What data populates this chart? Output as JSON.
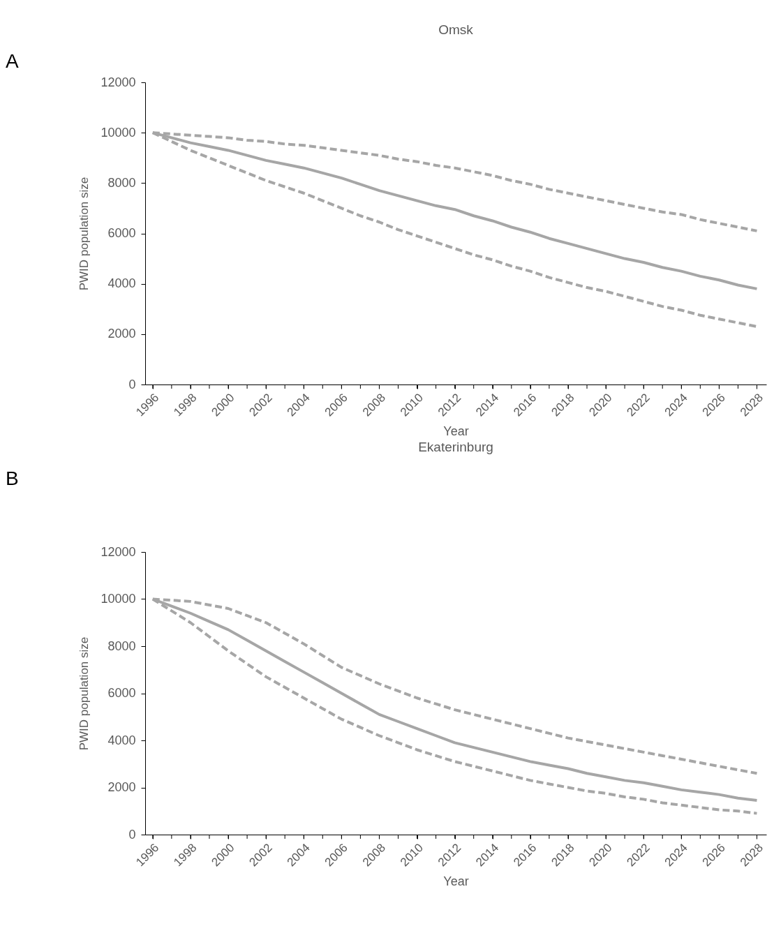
{
  "chart_data": [
    {
      "type": "line",
      "title": "Omsk",
      "xlabel": "Year",
      "ylabel": "PWID population size",
      "annotations": [
        "A"
      ],
      "x": [
        1996,
        1997,
        1998,
        1999,
        2000,
        2001,
        2002,
        2003,
        2004,
        2005,
        2006,
        2007,
        2008,
        2009,
        2010,
        2011,
        2012,
        2013,
        2014,
        2015,
        2016,
        2017,
        2018,
        2019,
        2020,
        2021,
        2022,
        2023,
        2024,
        2025,
        2026,
        2027,
        2028
      ],
      "xlim": [
        1995.6,
        2028.5
      ],
      "xticks": [
        1996,
        {
          "value": 1997,
          "label": null
        },
        1998,
        {
          "value": 1999,
          "label": null
        },
        2000,
        {
          "value": 2001,
          "label": null
        },
        2002,
        {
          "value": 2003,
          "label": null
        },
        2004,
        {
          "value": 2005,
          "label": null
        },
        2006,
        {
          "value": 2007,
          "label": null
        },
        2008,
        {
          "value": 2009,
          "label": null
        },
        2010,
        {
          "value": 2011,
          "label": null
        },
        2012,
        {
          "value": 2013,
          "label": null
        },
        2014,
        {
          "value": 2015,
          "label": null
        },
        2016,
        {
          "value": 2017,
          "label": null
        },
        2018,
        {
          "value": 2019,
          "label": null
        },
        2020,
        {
          "value": 2021,
          "label": null
        },
        2022,
        {
          "value": 2023,
          "label": null
        },
        2024,
        {
          "value": 2025,
          "label": null
        },
        2026,
        {
          "value": 2027,
          "label": null
        },
        2028
      ],
      "ylim": [
        0,
        12000
      ],
      "yticks": [
        0,
        2000,
        4000,
        6000,
        8000,
        10000,
        12000
      ],
      "grid": false,
      "series": [
        {
          "color": "#a6a6a6",
          "line_style": "solid",
          "values": [
            10000,
            9800,
            9600,
            9450,
            9300,
            9100,
            8900,
            8750,
            8600,
            8400,
            8200,
            7950,
            7700,
            7500,
            7300,
            7100,
            6950,
            6700,
            6500,
            6250,
            6050,
            5800,
            5600,
            5400,
            5200,
            5000,
            4850,
            4650,
            4500,
            4300,
            4150,
            3950,
            3800
          ]
        },
        {
          "color": "#a6a6a6",
          "line_style": "dashed",
          "values": [
            10000,
            9950,
            9900,
            9850,
            9800,
            9700,
            9650,
            9550,
            9500,
            9400,
            9300,
            9200,
            9100,
            8950,
            8850,
            8700,
            8600,
            8450,
            8300,
            8100,
            7950,
            7750,
            7600,
            7450,
            7300,
            7150,
            7000,
            6850,
            6750,
            6550,
            6400,
            6250,
            6100
          ]
        },
        {
          "color": "#a6a6a6",
          "line_style": "dashed",
          "values": [
            10000,
            9650,
            9300,
            9000,
            8700,
            8400,
            8100,
            7850,
            7600,
            7300,
            7000,
            6700,
            6450,
            6150,
            5900,
            5650,
            5400,
            5150,
            4950,
            4700,
            4500,
            4250,
            4050,
            3850,
            3700,
            3500,
            3300,
            3100,
            2950,
            2750,
            2600,
            2450,
            2300
          ]
        }
      ]
    },
    {
      "type": "line",
      "title": "Ekaterinburg",
      "xlabel": "Year",
      "ylabel": "PWID population size",
      "annotations": [
        "B"
      ],
      "x": [
        1996,
        1997,
        1998,
        1999,
        2000,
        2001,
        2002,
        2003,
        2004,
        2005,
        2006,
        2007,
        2008,
        2009,
        2010,
        2011,
        2012,
        2013,
        2014,
        2015,
        2016,
        2017,
        2018,
        2019,
        2020,
        2021,
        2022,
        2023,
        2024,
        2025,
        2026,
        2027,
        2028
      ],
      "xlim": [
        1995.6,
        2028.5
      ],
      "xticks": [
        1996,
        {
          "value": 1997,
          "label": null
        },
        1998,
        {
          "value": 1999,
          "label": null
        },
        2000,
        {
          "value": 2001,
          "label": null
        },
        2002,
        {
          "value": 2003,
          "label": null
        },
        2004,
        {
          "value": 2005,
          "label": null
        },
        2006,
        {
          "value": 2007,
          "label": null
        },
        2008,
        {
          "value": 2009,
          "label": null
        },
        2010,
        {
          "value": 2011,
          "label": null
        },
        2012,
        {
          "value": 2013,
          "label": null
        },
        2014,
        {
          "value": 2015,
          "label": null
        },
        2016,
        {
          "value": 2017,
          "label": null
        },
        2018,
        {
          "value": 2019,
          "label": null
        },
        2020,
        {
          "value": 2021,
          "label": null
        },
        2022,
        {
          "value": 2023,
          "label": null
        },
        2024,
        {
          "value": 2025,
          "label": null
        },
        2026,
        {
          "value": 2027,
          "label": null
        },
        2028
      ],
      "ylim": [
        0,
        12000
      ],
      "yticks": [
        0,
        2000,
        4000,
        6000,
        8000,
        10000,
        12000
      ],
      "grid": false,
      "series": [
        {
          "color": "#a6a6a6",
          "line_style": "solid",
          "values": [
            10000,
            9700,
            9400,
            9050,
            8700,
            8250,
            7800,
            7350,
            6900,
            6450,
            6000,
            5550,
            5100,
            4800,
            4500,
            4200,
            3900,
            3700,
            3500,
            3300,
            3100,
            2950,
            2800,
            2600,
            2450,
            2300,
            2200,
            2050,
            1900,
            1800,
            1700,
            1550,
            1450
          ]
        },
        {
          "color": "#a6a6a6",
          "line_style": "dashed",
          "values": [
            10000,
            9950,
            9900,
            9750,
            9600,
            9300,
            9000,
            8550,
            8100,
            7600,
            7100,
            6750,
            6400,
            6100,
            5800,
            5550,
            5300,
            5100,
            4900,
            4700,
            4500,
            4300,
            4100,
            3950,
            3800,
            3650,
            3500,
            3350,
            3200,
            3050,
            2900,
            2750,
            2600
          ]
        },
        {
          "color": "#a6a6a6",
          "line_style": "dashed",
          "values": [
            10000,
            9500,
            9000,
            8400,
            7800,
            7250,
            6700,
            6250,
            5800,
            5350,
            4900,
            4550,
            4200,
            3900,
            3600,
            3350,
            3100,
            2900,
            2700,
            2500,
            2300,
            2150,
            2000,
            1850,
            1750,
            1600,
            1500,
            1350,
            1250,
            1150,
            1050,
            1000,
            900
          ]
        }
      ]
    }
  ]
}
